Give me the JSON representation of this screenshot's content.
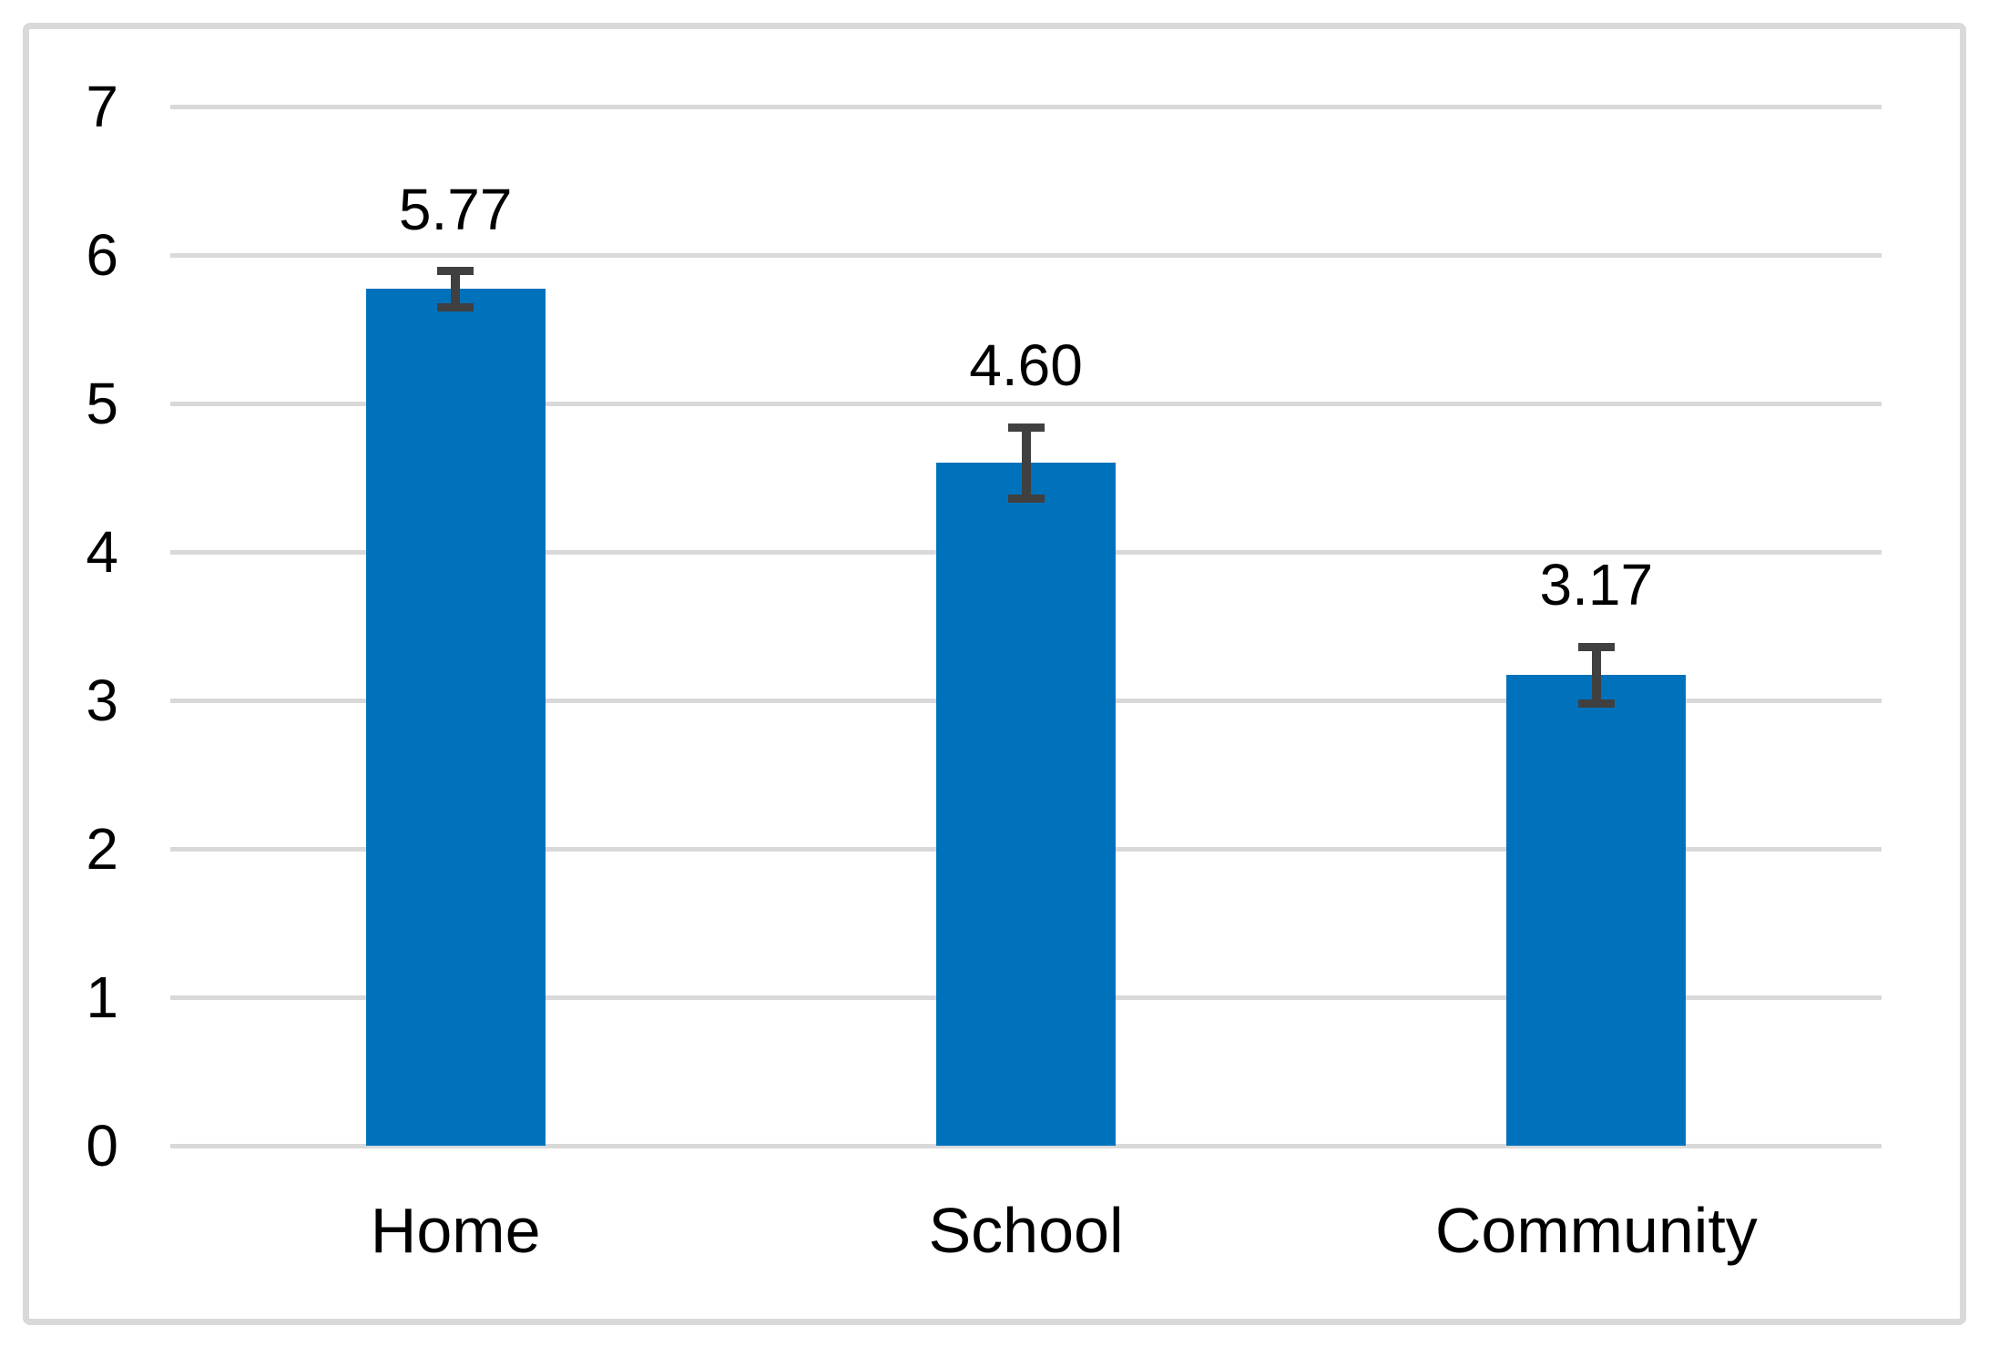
{
  "chart_data": {
    "type": "bar",
    "title": "",
    "xlabel": "",
    "ylabel": "",
    "categories": [
      "Home",
      "School",
      "Community"
    ],
    "values": [
      5.77,
      4.6,
      3.17
    ],
    "errors": [
      0.12,
      0.24,
      0.19
    ],
    "value_labels": [
      "5.77",
      "4.60",
      "3.17"
    ],
    "ylim": [
      0,
      7
    ],
    "yticks": [
      0,
      1,
      2,
      3,
      4,
      5,
      6,
      7
    ],
    "ytick_labels": [
      "0",
      "1",
      "2",
      "3",
      "4",
      "5",
      "6",
      "7"
    ],
    "grid": "horizontal",
    "legend": "none",
    "colors": {
      "bar": "#0072BC",
      "error_bar": "#404040",
      "gridline": "#D9D9D9",
      "frame_border": "#D9D9D9",
      "text": "#000000",
      "background": "#FFFFFF"
    }
  }
}
